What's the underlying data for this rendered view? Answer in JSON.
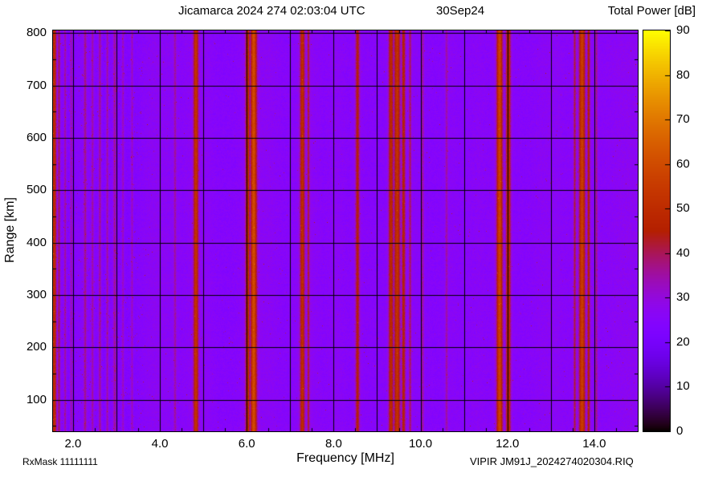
{
  "footer": {
    "rx_mask": "RxMask 11111111",
    "file": "VIPIR  JM91J_2024274020304.RIQ"
  },
  "chart_data": {
    "type": "heatmap",
    "title": "Jicamarca 2024 274 02:03:04 UTC",
    "timestamp_label": "30Sep24",
    "xlabel": "Frequency [MHz]",
    "ylabel": "Range [km]",
    "colorbar_label": "Total Power [dB]",
    "xlim": [
      1.54,
      15.0
    ],
    "ylim": [
      40,
      805
    ],
    "x_ticks": [
      {
        "value": 2.0,
        "label": "2.0"
      },
      {
        "value": 4.0,
        "label": "4.0"
      },
      {
        "value": 6.0,
        "label": "6.0"
      },
      {
        "value": 8.0,
        "label": "8.0"
      },
      {
        "value": 10.0,
        "label": "10.0"
      },
      {
        "value": 12.0,
        "label": "12.0"
      },
      {
        "value": 14.0,
        "label": "14.0"
      }
    ],
    "x_grid_interval": 1.0,
    "x_minor_interval": 0.5,
    "y_ticks": [
      {
        "value": 100,
        "label": "100"
      },
      {
        "value": 200,
        "label": "200"
      },
      {
        "value": 300,
        "label": "300"
      },
      {
        "value": 400,
        "label": "400"
      },
      {
        "value": 500,
        "label": "500"
      },
      {
        "value": 600,
        "label": "600"
      },
      {
        "value": 700,
        "label": "700"
      },
      {
        "value": 800,
        "label": "800"
      }
    ],
    "y_grid_interval": 100,
    "y_minor_interval": 50,
    "grid": true,
    "grid_color": "#000000",
    "colorbar_range": [
      0,
      90
    ],
    "colorbar_ticks": [
      {
        "value": 0,
        "label": "0"
      },
      {
        "value": 10,
        "label": "10"
      },
      {
        "value": 20,
        "label": "20"
      },
      {
        "value": 30,
        "label": "30"
      },
      {
        "value": 40,
        "label": "40"
      },
      {
        "value": 50,
        "label": "50"
      },
      {
        "value": 60,
        "label": "60"
      },
      {
        "value": 70,
        "label": "70"
      },
      {
        "value": 80,
        "label": "80"
      },
      {
        "value": 90,
        "label": "90"
      }
    ],
    "colormap": "black-violet-magenta-red-orange-yellow (gnuplot pm3d)",
    "background_db": 26,
    "noise_db": 2.5,
    "rfi_bands": [
      {
        "freq": 1.57,
        "sigma": 0.035,
        "db": 50
      },
      {
        "freq": 1.68,
        "sigma": 0.02,
        "db": 41
      },
      {
        "freq": 1.82,
        "sigma": 0.018,
        "db": 38
      },
      {
        "freq": 1.96,
        "sigma": 0.018,
        "db": 37
      },
      {
        "freq": 2.28,
        "sigma": 0.022,
        "db": 38
      },
      {
        "freq": 2.45,
        "sigma": 0.02,
        "db": 37
      },
      {
        "freq": 2.62,
        "sigma": 0.022,
        "db": 39
      },
      {
        "freq": 2.79,
        "sigma": 0.02,
        "db": 38
      },
      {
        "freq": 2.96,
        "sigma": 0.025,
        "db": 38
      },
      {
        "freq": 3.15,
        "sigma": 0.018,
        "db": 36
      },
      {
        "freq": 3.36,
        "sigma": 0.018,
        "db": 36
      },
      {
        "freq": 4.35,
        "sigma": 0.02,
        "db": 36
      },
      {
        "freq": 4.83,
        "sigma": 0.04,
        "db": 52
      },
      {
        "freq": 6.02,
        "sigma": 0.035,
        "db": 52
      },
      {
        "freq": 6.16,
        "sigma": 0.05,
        "db": 60
      },
      {
        "freq": 7.28,
        "sigma": 0.04,
        "db": 50
      },
      {
        "freq": 7.42,
        "sigma": 0.02,
        "db": 42
      },
      {
        "freq": 8.55,
        "sigma": 0.035,
        "db": 46
      },
      {
        "freq": 9.32,
        "sigma": 0.04,
        "db": 50
      },
      {
        "freq": 9.46,
        "sigma": 0.05,
        "db": 52
      },
      {
        "freq": 9.61,
        "sigma": 0.03,
        "db": 46
      },
      {
        "freq": 9.76,
        "sigma": 0.02,
        "db": 40
      },
      {
        "freq": 10.05,
        "sigma": 0.02,
        "db": 37
      },
      {
        "freq": 10.6,
        "sigma": 0.02,
        "db": 36
      },
      {
        "freq": 11.82,
        "sigma": 0.05,
        "db": 58
      },
      {
        "freq": 12.02,
        "sigma": 0.04,
        "db": 52
      },
      {
        "freq": 13.55,
        "sigma": 0.02,
        "db": 42
      },
      {
        "freq": 13.72,
        "sigma": 0.05,
        "db": 56
      },
      {
        "freq": 13.87,
        "sigma": 0.025,
        "db": 46
      },
      {
        "freq": 14.05,
        "sigma": 0.018,
        "db": 38
      }
    ],
    "dark_bands": [
      {
        "freq": 1.9,
        "sigma": 0.12,
        "db": -2.0
      },
      {
        "freq": 2.6,
        "sigma": 0.45,
        "db": -2.0
      },
      {
        "freq": 3.3,
        "sigma": 0.25,
        "db": -1.5
      },
      {
        "freq": 5.4,
        "sigma": 0.3,
        "db": -1.0
      },
      {
        "freq": 10.9,
        "sigma": 0.5,
        "db": -1.0
      }
    ]
  }
}
